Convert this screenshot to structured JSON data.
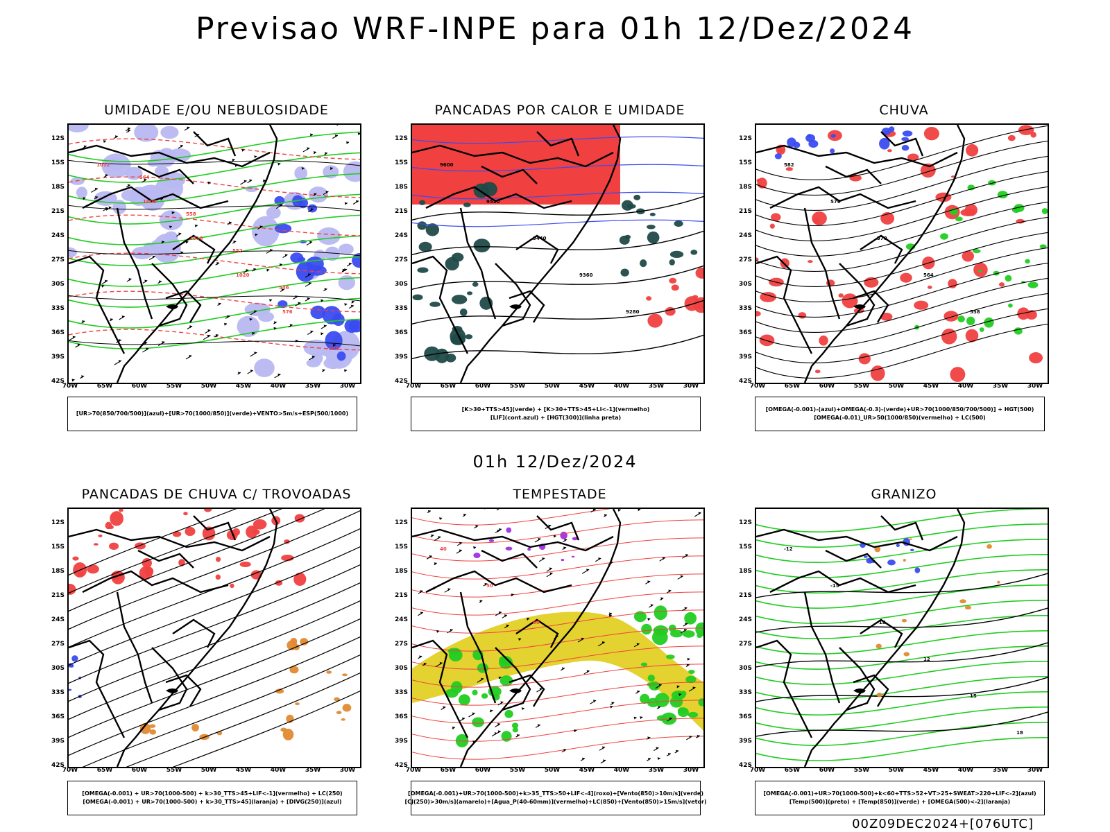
{
  "main_title": "Previsao WRF-INPE  para 01h 12/Dez/2024",
  "mid_title": "01h 12/Dez/2024",
  "footer": "00Z09DEC2024+[076UTC]",
  "axes": {
    "lat_labels": [
      "12S",
      "15S",
      "18S",
      "21S",
      "24S",
      "27S",
      "30S",
      "33S",
      "36S",
      "39S",
      "42S"
    ],
    "lon_labels": [
      "70W",
      "65W",
      "60W",
      "55W",
      "50W",
      "45W",
      "40W",
      "35W",
      "30W"
    ]
  },
  "colors": {
    "blue": "#3a4cf0",
    "lightblue": "#b8b8f2",
    "green": "#22cc22",
    "red": "#f04040",
    "darkteal": "#1f4a48",
    "yellow": "#e4d230",
    "orange": "#e08a30",
    "purple": "#a030e0",
    "black": "#000000"
  },
  "panels": [
    {
      "id": "umidade",
      "title": "UMIDADE E/OU NEBULOSIDADE",
      "legend": [
        "[UR>70(850/700/500)](azul)+[UR>70(1000/850)](verde)+VENTO>5m/s+ESP(500/1000)"
      ],
      "contour_labels": [
        "1012",
        "1008",
        "1016",
        "1020",
        "576",
        "570",
        "564",
        "558",
        "552",
        "546"
      ]
    },
    {
      "id": "pancadas-calor",
      "title": "PANCADAS POR CALOR E UMIDADE",
      "legend": [
        "[K>30+TTS>45](verde) + [K>30+TTS>45+LI<-1](vermelho)",
        "[LIF](cont.azul) + [HGT(300)](linha preta)"
      ],
      "contour_labels": [
        "9600",
        "9520",
        "9440",
        "9360",
        "9280"
      ]
    },
    {
      "id": "chuva",
      "title": "CHUVA",
      "legend": [
        "[OMEGA(-0.001)-(azul)+OMEGA(-0.3)-(verde)+UR>70(1000/850/700/500)] + HGT(500)",
        "[OMEGA(-0.01)_UR>50(1000/850)(vermelho) + LC(500)"
      ],
      "contour_labels": [
        "582",
        "576",
        "570",
        "564",
        "558"
      ]
    },
    {
      "id": "pancadas-trovoadas",
      "title": "PANCADAS DE CHUVA C/ TROVOADAS",
      "legend": [
        "[OMEGA(-0.001) + UR>70(1000-500) + k>30_TTS>45+LIF<-1](vermelho) + LC(250)",
        "[OMEGA(-0.001) + UR>70(1000-500) + k>30_TTS>45](laranja) + [DIVG(250)](azul)"
      ],
      "contour_labels": []
    },
    {
      "id": "tempestade",
      "title": "TEMPESTADE",
      "legend": [
        "[OMEGA(-0.001)+UR>70(1000-500)+k>35_TTS>50+LIF<-4](roxo)+[Vento(850)>10m/s](verde)",
        "[CJ(250)>30m/s](amarelo)+[Agua_P(40-60mm)](vermelho)+LC(850)+[Vento(850)>15m/s](vetor)"
      ],
      "contour_labels": [
        "40",
        "50",
        "60"
      ]
    },
    {
      "id": "granizo",
      "title": "GRANIZO",
      "legend": [
        "[OMEGA(-0.001)+UR>70(1000-500)+k<60+TTS>52+VT>25+SWEAT>220+LIF<-2](azul)",
        "[Temp(500)](preto) + [Temp(850)](verde) + [OMEGA(500)<-2](laranja)"
      ],
      "contour_labels": [
        "-12",
        "-15",
        "-18",
        "12",
        "15",
        "18"
      ]
    }
  ]
}
